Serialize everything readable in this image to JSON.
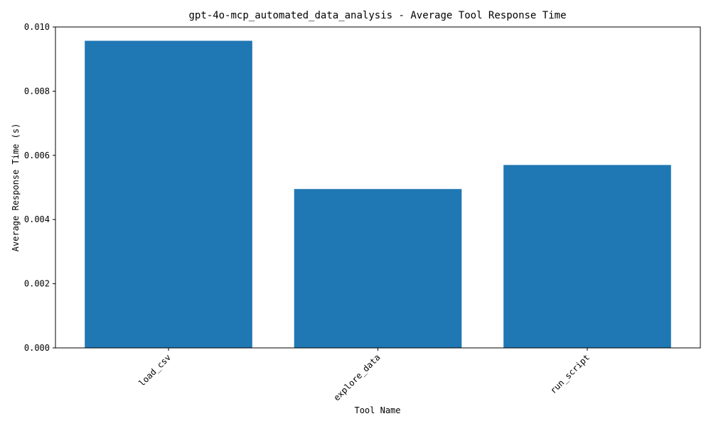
{
  "chart_data": {
    "type": "bar",
    "title": "gpt-4o-mcp_automated_data_analysis - Average Tool Response Time",
    "xlabel": "Tool Name",
    "ylabel": "Average Response Time (s)",
    "categories": [
      "load_csv",
      "explore_data",
      "run_script"
    ],
    "values": [
      0.00957,
      0.00495,
      0.0057
    ],
    "ylim": [
      0,
      0.01
    ],
    "yticks": [
      "0.000",
      "0.002",
      "0.004",
      "0.006",
      "0.008",
      "0.010"
    ],
    "grid": false,
    "legend": "none",
    "bar_color": "#1f77b4"
  }
}
